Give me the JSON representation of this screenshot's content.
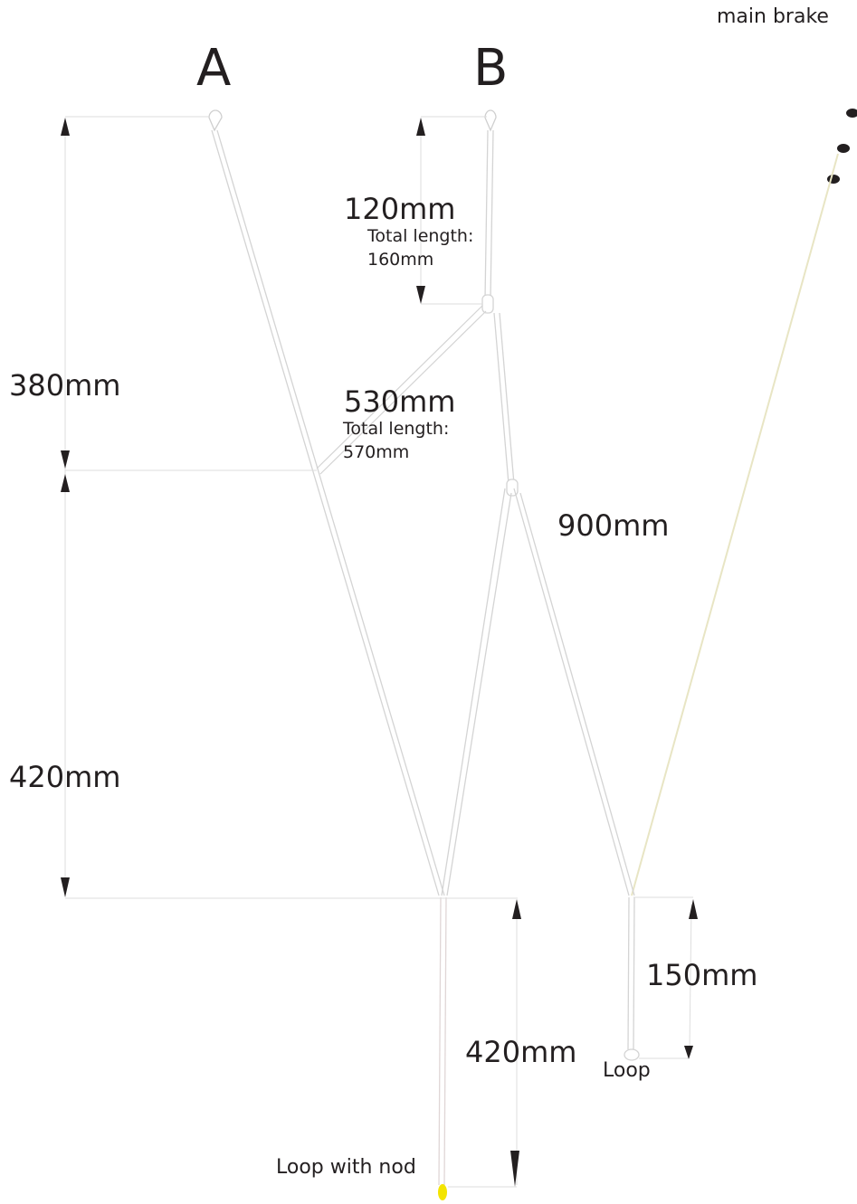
{
  "labels": {
    "main_brake": "main brake",
    "A": "A",
    "B": "B",
    "b_top_dim": "120mm",
    "b_top_total_1": "Total length:",
    "b_top_total_2": "160mm",
    "a_upper_dim": "380mm",
    "cascade_dim": "530mm",
    "cascade_total_1": "Total length:",
    "cascade_total_2": "570mm",
    "b_lower_dim": "900mm",
    "a_lower_dim": "420mm",
    "loop_right_dim": "150mm",
    "bottom_dim": "420mm",
    "loop_right": "Loop",
    "loop_with_nod": "Loop with nod"
  },
  "colors": {
    "line": "#d6d6d6",
    "dim_line": "#dcdcdc",
    "arrow": "#231f20",
    "dots": "#231f20",
    "nod": "#f3e400",
    "brake_line": "#ece9c8"
  }
}
